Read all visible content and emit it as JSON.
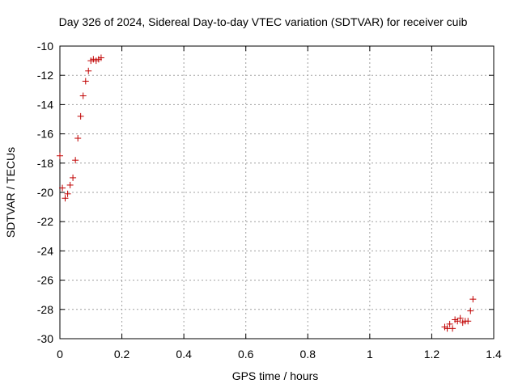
{
  "chart_data": {
    "type": "scatter",
    "title": "Day 326 of 2024, Sidereal Day-to-day VTEC variation (SDTVAR) for receiver cuib",
    "xlabel": "GPS time / hours",
    "ylabel": "SDTVAR / TECUs",
    "xlim": [
      0,
      1.4
    ],
    "ylim": [
      -30,
      -10
    ],
    "xticks": [
      0,
      0.2,
      0.4,
      0.6,
      0.8,
      1,
      1.2,
      1.4
    ],
    "xtick_labels": [
      "0",
      "0.2",
      "0.4",
      "0.6",
      "0.8",
      "1",
      "1.2",
      "1.4"
    ],
    "yticks": [
      -30,
      -28,
      -26,
      -24,
      -22,
      -20,
      -18,
      -16,
      -14,
      -12,
      -10
    ],
    "ytick_labels": [
      "-30",
      "-28",
      "-26",
      "-24",
      "-22",
      "-20",
      "-18",
      "-16",
      "-14",
      "-12",
      "-10"
    ],
    "grid": true,
    "marker": "+",
    "marker_color": "#c00000",
    "series": [
      {
        "name": "SDTVAR",
        "x": [
          0.0,
          0.008,
          0.017,
          0.025,
          0.033,
          0.042,
          0.05,
          0.058,
          0.067,
          0.075,
          0.083,
          0.092,
          0.1,
          0.108,
          0.117,
          0.125,
          0.133,
          1.242,
          1.25,
          1.258,
          1.267,
          1.275,
          1.283,
          1.292,
          1.3,
          1.308,
          1.317,
          1.325,
          1.333
        ],
        "y": [
          -17.5,
          -19.7,
          -20.4,
          -20.1,
          -19.5,
          -19.0,
          -17.8,
          -16.3,
          -14.8,
          -13.4,
          -12.4,
          -11.7,
          -11.0,
          -10.9,
          -11.0,
          -10.9,
          -10.8,
          -29.2,
          -29.3,
          -29.0,
          -29.3,
          -28.7,
          -28.8,
          -28.6,
          -28.9,
          -28.8,
          -28.8,
          -28.1,
          -27.3
        ]
      }
    ]
  }
}
